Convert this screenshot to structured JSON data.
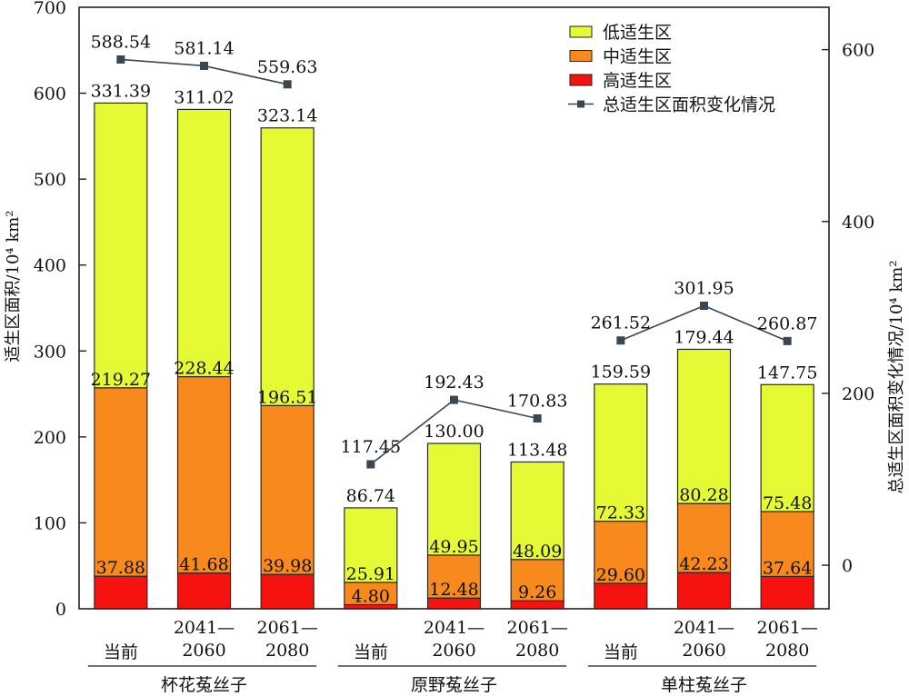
{
  "chart_data": {
    "type": "bar",
    "subtype": "stacked-bar-with-line",
    "title": "",
    "ylabel_left": "适生区面积/10⁴ km²",
    "ylabel_right": "总适生区面积变化情况/10⁴ km²",
    "ylim_left": [
      0,
      700
    ],
    "yticks_left": [
      0,
      100,
      200,
      300,
      400,
      500,
      600,
      700
    ],
    "ylim_right": [
      -50.7,
      649.3
    ],
    "yticks_right": [
      0,
      200,
      400,
      600
    ],
    "grid": false,
    "legend_position": "top-right",
    "groups": [
      {
        "name": "杯花菟丝子",
        "categories": [
          "当前",
          "2041—\n2060",
          "2061—\n2080"
        ]
      },
      {
        "name": "原野菟丝子",
        "categories": [
          "当前",
          "2041—\n2060",
          "2061—\n2080"
        ]
      },
      {
        "name": "单柱菟丝子",
        "categories": [
          "当前",
          "2041—\n2060",
          "2061—\n2080"
        ]
      }
    ],
    "categories": [
      "杯花菟丝子 当前",
      "杯花菟丝子 2041—2060",
      "杯花菟丝子 2061—2080",
      "原野菟丝子 当前",
      "原野菟丝子 2041—2060",
      "原野菟丝子 2061—2080",
      "单柱菟丝子 当前",
      "单柱菟丝子 2041—2060",
      "单柱菟丝子 2061—2080"
    ],
    "category_lines": [
      [
        "当前",
        ""
      ],
      [
        "2041—",
        "2060"
      ],
      [
        "2061—",
        "2080"
      ],
      [
        "当前",
        ""
      ],
      [
        "2041—",
        "2060"
      ],
      [
        "2061—",
        "2080"
      ],
      [
        "当前",
        ""
      ],
      [
        "2041—",
        "2060"
      ],
      [
        "2061—",
        "2080"
      ]
    ],
    "series": [
      {
        "name": "高适生区",
        "color": "#F5120F",
        "axis": "left",
        "kind": "bar",
        "values": [
          37.88,
          41.68,
          39.98,
          4.8,
          12.48,
          9.26,
          29.6,
          42.23,
          37.64
        ]
      },
      {
        "name": "中适生区",
        "color": "#F8891C",
        "axis": "left",
        "kind": "bar",
        "values": [
          219.27,
          228.44,
          196.51,
          25.91,
          49.95,
          48.09,
          72.33,
          80.28,
          75.48
        ]
      },
      {
        "name": "低适生区",
        "color": "#E5FA34",
        "axis": "left",
        "kind": "bar",
        "values": [
          331.39,
          311.02,
          323.14,
          86.74,
          130.0,
          113.48,
          159.59,
          179.44,
          147.75
        ]
      },
      {
        "name": "总适生区面积变化情况",
        "color": "#3A4650",
        "axis": "right",
        "kind": "line",
        "values": [
          588.54,
          581.14,
          559.63,
          117.45,
          192.43,
          170.83,
          261.52,
          301.95,
          260.87
        ]
      }
    ],
    "legend": [
      {
        "label": "低适生区",
        "type": "box",
        "color": "#E5FA34"
      },
      {
        "label": "中适生区",
        "type": "box",
        "color": "#F8891C"
      },
      {
        "label": "高适生区",
        "type": "box",
        "color": "#F5120F"
      },
      {
        "label": "总适生区面积变化情况",
        "type": "line",
        "color": "#3A4650"
      }
    ],
    "data_labels": {
      "high": [
        "37.88",
        "41.68",
        "39.98",
        "4.80",
        "12.48",
        "9.26",
        "29.60",
        "42.23",
        "37.64"
      ],
      "mid": [
        "219.27",
        "228.44",
        "196.51",
        "25.91",
        "49.95",
        "48.09",
        "72.33",
        "80.28",
        "75.48"
      ],
      "low": [
        "331.39",
        "311.02",
        "323.14",
        "86.74",
        "130.00",
        "113.48",
        "159.59",
        "179.44",
        "147.75"
      ],
      "total": [
        "588.54",
        "581.14",
        "559.63",
        "117.45",
        "192.43",
        "170.83",
        "261.52",
        "301.95",
        "260.87"
      ]
    }
  }
}
